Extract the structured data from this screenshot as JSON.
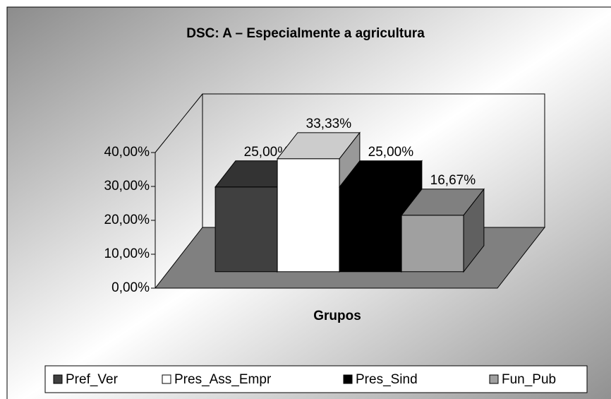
{
  "chart_data": {
    "type": "bar3d",
    "title": "DSC: A – Especialmente a agricultura",
    "x_label": "Grupos",
    "ylim": [
      0,
      40
    ],
    "yticks": [
      {
        "value": 0,
        "label": "0,00%"
      },
      {
        "value": 10,
        "label": "10,00%"
      },
      {
        "value": 20,
        "label": "20,00%"
      },
      {
        "value": 30,
        "label": "30,00%"
      },
      {
        "value": 40,
        "label": "40,00%"
      }
    ],
    "legend": "bottom",
    "series": [
      {
        "name": "Pref_Ver",
        "color": "#404040",
        "values": [
          25.0
        ],
        "value_labels": [
          "25,00%"
        ]
      },
      {
        "name": "Pres_Ass_Empr",
        "color": "#ffffff",
        "values": [
          33.33
        ],
        "value_labels": [
          "33,33%"
        ]
      },
      {
        "name": "Pres_Sind",
        "color": "#000000",
        "values": [
          25.0
        ],
        "value_labels": [
          "25,00%"
        ]
      },
      {
        "name": "Fun_Pub",
        "color": "#a0a0a0",
        "values": [
          16.67
        ],
        "value_labels": [
          "16,67%"
        ]
      }
    ]
  }
}
